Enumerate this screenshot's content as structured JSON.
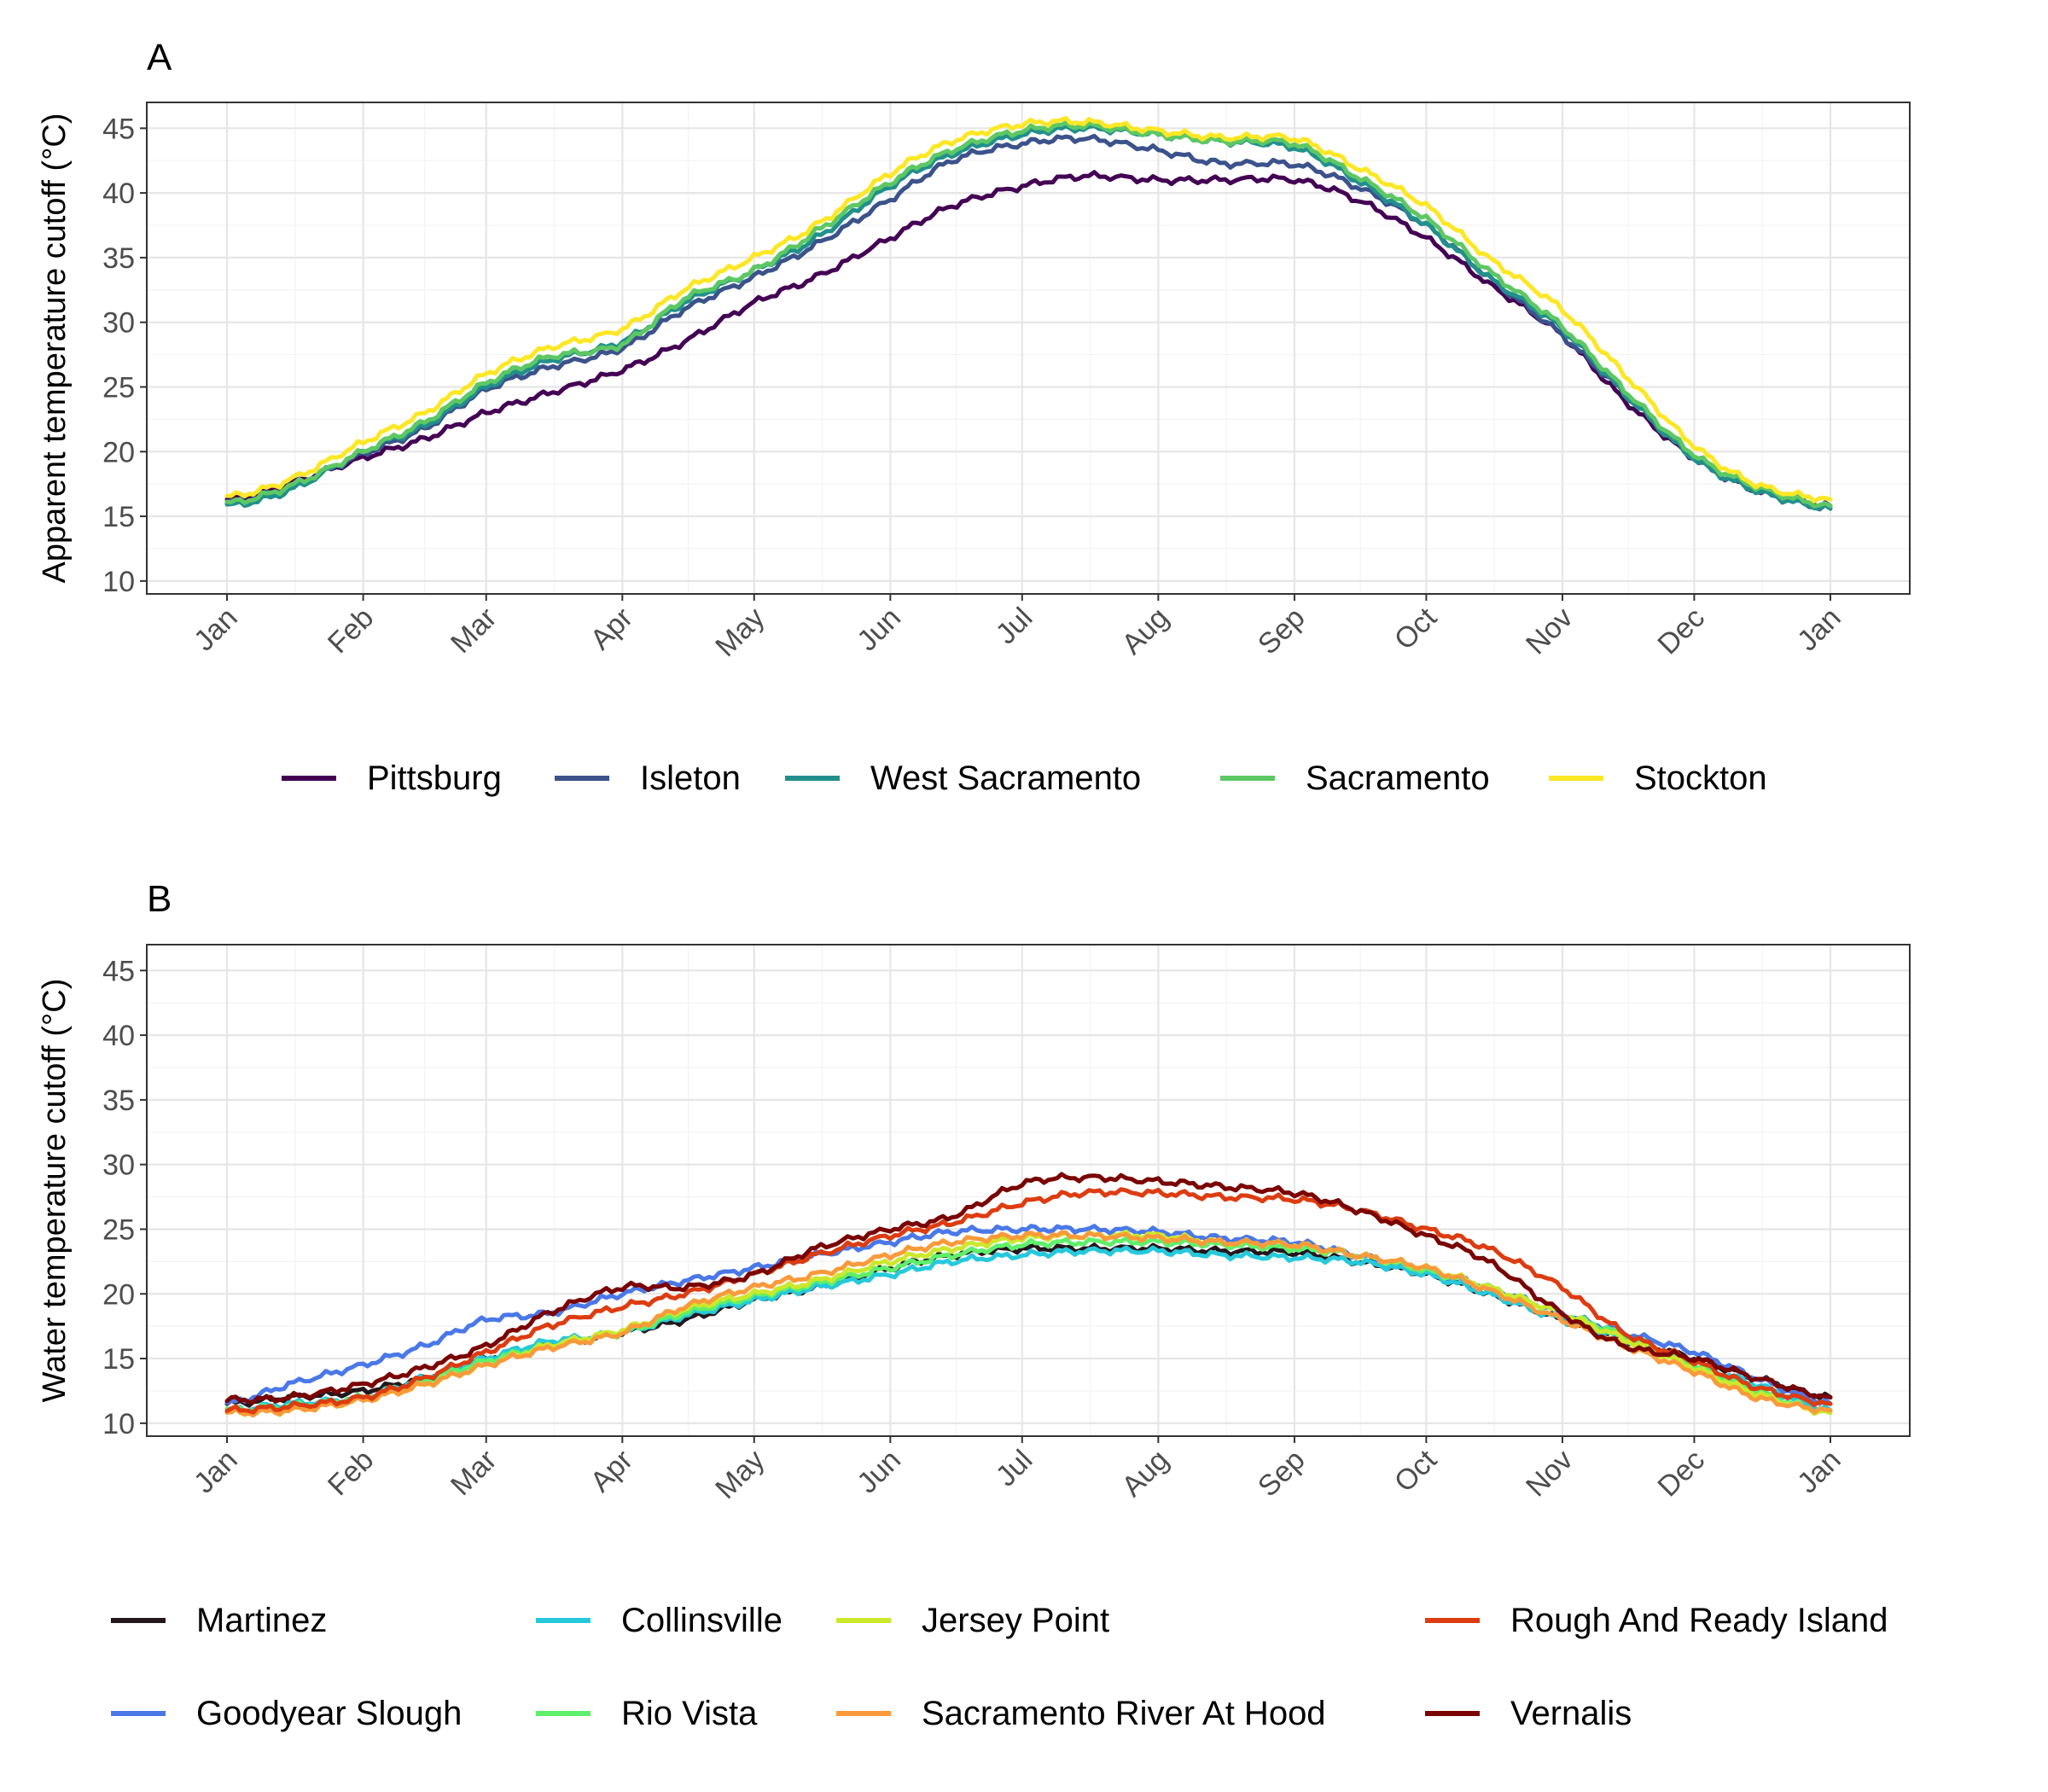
{
  "chart_data": [
    {
      "type": "line",
      "panel_label": "A",
      "title": "",
      "xlabel": "",
      "ylabel": "Apparent temperature cutoff (°C)",
      "ylim": [
        9,
        47
      ],
      "yticks": [
        10,
        15,
        20,
        25,
        30,
        35,
        40,
        45
      ],
      "x_ticks": [
        "Jan",
        "Feb",
        "Mar",
        "Apr",
        "May",
        "Jun",
        "Jul",
        "Aug",
        "Sep",
        "Oct",
        "Nov",
        "Dec",
        "Jan"
      ],
      "x": [
        "Jan 1",
        "Jan 15",
        "Feb 1",
        "Feb 15",
        "Mar 1",
        "Mar 15",
        "Apr 1",
        "Apr 15",
        "May 1",
        "May 15",
        "Jun 1",
        "Jun 15",
        "Jul 1",
        "Jul 15",
        "Aug 1",
        "Aug 15",
        "Sep 1",
        "Sep 15",
        "Oct 1",
        "Oct 15",
        "Nov 1",
        "Nov 15",
        "Dec 1",
        "Dec 15",
        "Jan 1"
      ],
      "grid": true,
      "legend_position": "bottom",
      "series": [
        {
          "name": "Pittsburg",
          "color": "#440154",
          "values": [
            16.3,
            17.5,
            19.5,
            21.0,
            23.0,
            24.5,
            26.3,
            28.5,
            31.5,
            33.5,
            36.5,
            39.0,
            40.5,
            41.3,
            41.0,
            41.0,
            41.0,
            39.5,
            36.5,
            33.0,
            29.0,
            24.0,
            19.5,
            17.0,
            15.8
          ]
        },
        {
          "name": "Isleton",
          "color": "#3B528B",
          "values": [
            16.0,
            17.3,
            19.8,
            21.8,
            24.8,
            26.5,
            28.0,
            31.0,
            33.5,
            36.0,
            39.5,
            42.5,
            43.8,
            44.2,
            43.3,
            42.3,
            42.2,
            40.5,
            37.5,
            33.5,
            29.0,
            24.5,
            19.5,
            17.0,
            15.6
          ]
        },
        {
          "name": "West Sacramento",
          "color": "#21908C",
          "values": [
            15.8,
            17.0,
            20.0,
            22.0,
            25.0,
            27.0,
            28.5,
            31.5,
            34.0,
            36.5,
            40.5,
            43.0,
            44.5,
            45.0,
            44.5,
            44.0,
            43.5,
            41.0,
            37.5,
            33.5,
            29.5,
            24.5,
            19.5,
            17.0,
            15.6
          ]
        },
        {
          "name": "Sacramento",
          "color": "#5DC863",
          "values": [
            16.0,
            17.3,
            20.0,
            22.3,
            25.3,
            27.3,
            28.3,
            31.8,
            34.0,
            37.0,
            40.8,
            43.3,
            44.8,
            45.2,
            44.5,
            44.0,
            43.8,
            41.3,
            38.0,
            34.0,
            29.7,
            24.8,
            19.8,
            17.3,
            15.8
          ]
        },
        {
          "name": "Stockton",
          "color": "#FDE725",
          "values": [
            16.5,
            17.8,
            20.7,
            23.0,
            26.0,
            28.0,
            29.5,
            32.5,
            35.0,
            37.5,
            41.5,
            44.0,
            45.3,
            45.5,
            44.8,
            44.3,
            44.2,
            42.0,
            39.0,
            35.0,
            31.0,
            26.0,
            20.5,
            17.5,
            16.3
          ]
        }
      ]
    },
    {
      "type": "line",
      "panel_label": "B",
      "title": "",
      "xlabel": "",
      "ylabel": "Water temperature cutoff (°C)",
      "ylim": [
        9,
        47
      ],
      "yticks": [
        10,
        15,
        20,
        25,
        30,
        35,
        40,
        45
      ],
      "x_ticks": [
        "Jan",
        "Feb",
        "Mar",
        "Apr",
        "May",
        "Jun",
        "Jul",
        "Aug",
        "Sep",
        "Oct",
        "Nov",
        "Dec",
        "Jan"
      ],
      "x": [
        "Jan 1",
        "Jan 15",
        "Feb 1",
        "Feb 15",
        "Mar 1",
        "Mar 15",
        "Apr 1",
        "Apr 15",
        "May 1",
        "May 15",
        "Jun 1",
        "Jun 15",
        "Jul 1",
        "Jul 15",
        "Aug 1",
        "Aug 15",
        "Sep 1",
        "Sep 15",
        "Oct 1",
        "Oct 15",
        "Nov 1",
        "Nov 15",
        "Dec 1",
        "Dec 15",
        "Jan 1"
      ],
      "grid": true,
      "legend_position": "bottom",
      "series": [
        {
          "name": "Martinez",
          "color": "#23171B",
          "values": [
            11.5,
            12.0,
            12.5,
            13.5,
            15.0,
            16.0,
            17.0,
            18.0,
            19.5,
            20.5,
            22.0,
            23.0,
            23.5,
            23.5,
            23.5,
            23.3,
            23.2,
            22.5,
            21.5,
            20.0,
            18.0,
            16.5,
            15.0,
            13.5,
            12.0
          ]
        },
        {
          "name": "Goodyear Slough",
          "color": "#4A78E8",
          "values": [
            11.5,
            13.0,
            14.5,
            16.0,
            18.0,
            18.5,
            20.0,
            21.0,
            22.0,
            23.0,
            24.0,
            24.8,
            25.0,
            25.0,
            24.8,
            24.3,
            24.0,
            23.0,
            21.8,
            20.5,
            18.5,
            17.0,
            15.5,
            13.5,
            11.5
          ]
        },
        {
          "name": "Collinsville",
          "color": "#26C9DB",
          "values": [
            11.0,
            11.5,
            12.0,
            13.5,
            15.0,
            16.3,
            17.0,
            18.3,
            19.5,
            20.5,
            21.5,
            22.5,
            23.0,
            23.3,
            23.3,
            23.0,
            22.8,
            22.5,
            21.5,
            20.0,
            18.0,
            16.5,
            14.5,
            13.0,
            11.0
          ]
        },
        {
          "name": "Rio Vista",
          "color": "#5EF06B",
          "values": [
            11.0,
            11.3,
            12.0,
            13.3,
            14.8,
            16.0,
            17.0,
            18.5,
            19.8,
            20.8,
            22.0,
            23.0,
            23.8,
            24.0,
            24.0,
            23.8,
            23.5,
            23.0,
            21.8,
            20.5,
            18.5,
            16.8,
            14.5,
            12.5,
            10.8
          ]
        },
        {
          "name": "Jersey Point",
          "color": "#CCE82B",
          "values": [
            10.8,
            11.0,
            11.8,
            13.0,
            14.5,
            16.0,
            17.2,
            18.8,
            20.0,
            21.0,
            22.5,
            23.5,
            24.3,
            24.5,
            24.5,
            24.0,
            23.8,
            23.0,
            22.0,
            20.5,
            18.5,
            16.5,
            14.3,
            12.3,
            10.8
          ]
        },
        {
          "name": "Sacramento River At Hood",
          "color": "#FA9A3A",
          "values": [
            10.8,
            11.0,
            11.8,
            13.0,
            14.5,
            15.8,
            17.0,
            19.0,
            20.5,
            21.5,
            23.0,
            24.0,
            24.5,
            24.5,
            24.3,
            24.0,
            23.8,
            23.0,
            22.0,
            20.3,
            18.0,
            16.0,
            14.0,
            12.0,
            11.0
          ]
        },
        {
          "name": "Rough And Ready Island",
          "color": "#DD3C11",
          "values": [
            11.0,
            11.3,
            12.0,
            13.5,
            15.5,
            17.5,
            19.0,
            20.0,
            21.5,
            23.0,
            24.5,
            25.5,
            27.0,
            27.8,
            27.8,
            27.5,
            27.3,
            26.5,
            25.0,
            23.5,
            20.5,
            17.0,
            14.8,
            12.8,
            11.5
          ]
        },
        {
          "name": "Vernalis",
          "color": "#7A0403",
          "values": [
            11.8,
            12.0,
            13.0,
            14.3,
            16.0,
            18.5,
            20.5,
            20.5,
            21.5,
            23.5,
            25.0,
            26.0,
            28.5,
            29.0,
            28.7,
            28.3,
            27.8,
            26.5,
            24.5,
            22.5,
            18.5,
            16.0,
            15.0,
            13.5,
            12.0
          ]
        }
      ]
    }
  ]
}
